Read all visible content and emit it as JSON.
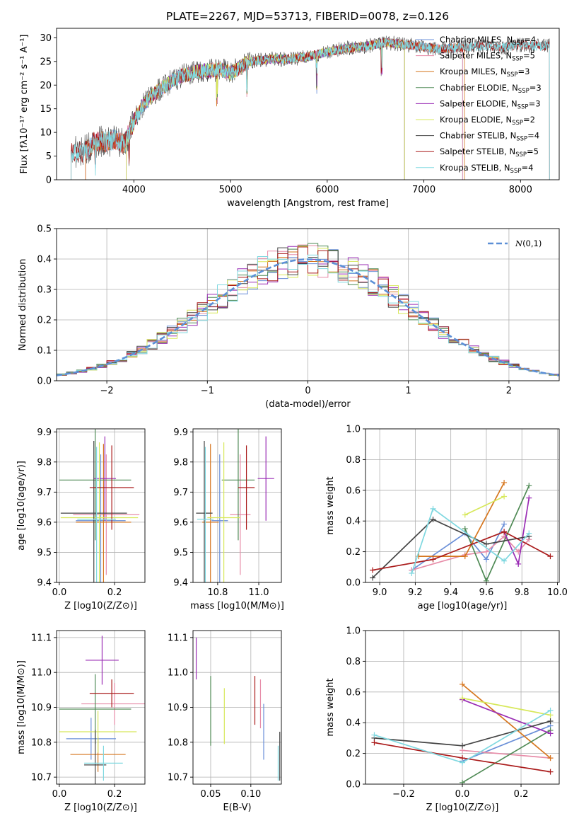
{
  "figure": {
    "title": "PLATE=2267, MJD=53713, FIBERID=0078, z=0.126"
  },
  "chart_data": [
    {
      "id": "spectrum",
      "type": "line",
      "xlabel": "wavelength [Angstrom, rest frame]",
      "ylabel": "Flux [fλ10⁻¹⁷ erg cm⁻² s⁻¹ A⁻¹]",
      "xlim": [
        3200,
        8400
      ],
      "ylim": [
        0,
        32
      ],
      "xticks": [
        4000,
        5000,
        6000,
        7000,
        8000
      ],
      "yticks": [
        0,
        5,
        10,
        15,
        20,
        25,
        30
      ],
      "grid": false,
      "legend_position": "upper right",
      "spectrum_envelope": {
        "x": [
          3350,
          3500,
          3600,
          3700,
          3800,
          3900,
          4000,
          4100,
          4200,
          4300,
          4400,
          4500,
          4700,
          4900,
          5000,
          5200,
          5400,
          5600,
          5800,
          6000,
          6200,
          6400,
          6600,
          6800,
          7000,
          7200,
          7400,
          7600,
          7800,
          8000,
          8200,
          8300
        ],
        "y": [
          5.8,
          6.0,
          8.2,
          8.0,
          8.5,
          7.5,
          12.5,
          16.0,
          18.0,
          19.5,
          21.0,
          22.0,
          23.0,
          23.3,
          22.5,
          25.0,
          25.5,
          25.5,
          26.0,
          27.0,
          27.8,
          28.2,
          29.0,
          28.6,
          28.0,
          27.6,
          28.0,
          28.3,
          27.9,
          28.5,
          28.2,
          28.4
        ]
      },
      "series": [
        {
          "name": "Chabrier MILES, N_SSP=4",
          "color": "#6a8fd8",
          "wmin": 3500,
          "wmax": 7400
        },
        {
          "name": "Salpeter MILES, N_SSP=5",
          "color": "#e78ca8",
          "wmin": 3500,
          "wmax": 7400
        },
        {
          "name": "Kroupa MILES, N_SSP=3",
          "color": "#d6761e",
          "wmin": 3500,
          "wmax": 7420
        },
        {
          "name": "Chabrier ELODIE, N_SSP=3",
          "color": "#4f8a55",
          "wmin": 3920,
          "wmax": 6800
        },
        {
          "name": "Salpeter ELODIE, N_SSP=3",
          "color": "#9a2db5",
          "wmin": 3920,
          "wmax": 6800
        },
        {
          "name": "Kroupa ELODIE, N_SSP=2",
          "color": "#d7e85a",
          "wmin": 3920,
          "wmax": 6800
        },
        {
          "name": "Chabrier STELIB, N_SSP=4",
          "color": "#444444",
          "wmin": 3350,
          "wmax": 8300
        },
        {
          "name": "Salpeter STELIB, N_SSP=5",
          "color": "#aa1b1b",
          "wmin": 3350,
          "wmax": 8300
        },
        {
          "name": "Kroupa STELIB, N_SSP=4",
          "color": "#7fd8e0",
          "wmin": 3350,
          "wmax": 8300
        }
      ]
    },
    {
      "id": "residuals",
      "type": "area",
      "xlabel": "(data-model)/error",
      "ylabel": "Normed distribution",
      "xlim": [
        -2.5,
        2.5
      ],
      "ylim": [
        0,
        0.5
      ],
      "xticks": [
        -2,
        -1,
        0,
        1,
        2
      ],
      "yticks": [
        0.0,
        0.1,
        0.2,
        0.3,
        0.4,
        0.5
      ],
      "grid": true,
      "legend": "N(0,1)",
      "legend_position": "upper right",
      "bin_width": 0.1,
      "histogram_series_colors": [
        "#6a8fd8",
        "#e78ca8",
        "#d6761e",
        "#4f8a55",
        "#9a2db5",
        "#d7e85a",
        "#444444",
        "#aa1b1b",
        "#7fd8e0"
      ],
      "gaussian_color": "#5b8fd6"
    },
    {
      "id": "age_vs_Z",
      "type": "scatter",
      "xlabel": "Z [log10(Z/Z⊙)]",
      "ylabel": "age  [log10(age/yr)]",
      "xlim": [
        -0.01,
        0.31
      ],
      "ylim": [
        9.4,
        9.91
      ],
      "xticks": [
        0.0,
        0.2
      ],
      "yticks": [
        9.4,
        9.5,
        9.6,
        9.7,
        9.8,
        9.9
      ],
      "grid": true,
      "points": [
        {
          "color": "#6a8fd8",
          "x": 0.15,
          "xerr": 0.09,
          "y": 9.605,
          "yerr": 0.22
        },
        {
          "color": "#e78ca8",
          "x": 0.17,
          "xerr": 0.12,
          "y": 9.625,
          "yerr": 0.2
        },
        {
          "color": "#d6761e",
          "x": 0.16,
          "xerr": 0.1,
          "y": 9.6,
          "yerr": 0.26
        },
        {
          "color": "#4f8a55",
          "x": 0.13,
          "xerr": 0.13,
          "y": 9.74,
          "yerr": 0.2
        },
        {
          "color": "#9a2db5",
          "x": 0.165,
          "xerr": 0.04,
          "y": 9.745,
          "yerr": 0.14
        },
        {
          "color": "#d7e85a",
          "x": 0.145,
          "xerr": 0.14,
          "y": 9.615,
          "yerr": 0.25
        },
        {
          "color": "#444444",
          "x": 0.125,
          "xerr": 0.12,
          "y": 9.63,
          "yerr": 0.24
        },
        {
          "color": "#aa1b1b",
          "x": 0.19,
          "xerr": 0.08,
          "y": 9.715,
          "yerr": 0.14
        },
        {
          "color": "#7fd8e0",
          "x": 0.135,
          "xerr": 0.07,
          "y": 9.61,
          "yerr": 0.24
        }
      ]
    },
    {
      "id": "age_vs_mass",
      "type": "scatter",
      "xlabel": "mass [log10(M/M⊙)]",
      "ylabel": "",
      "xlim": [
        10.68,
        11.11
      ],
      "ylim": [
        9.4,
        9.91
      ],
      "xticks": [
        10.8,
        11.0
      ],
      "yticks": [
        9.4,
        9.5,
        9.6,
        9.7,
        9.8,
        9.9
      ],
      "grid": true,
      "points": [
        {
          "color": "#6a8fd8",
          "x": 10.81,
          "xerr": 0.04,
          "y": 9.605,
          "yerr": 0.22
        },
        {
          "color": "#e78ca8",
          "x": 10.91,
          "xerr": 0.05,
          "y": 9.625,
          "yerr": 0.2
        },
        {
          "color": "#d6761e",
          "x": 10.765,
          "xerr": 0.04,
          "y": 9.6,
          "yerr": 0.26
        },
        {
          "color": "#4f8a55",
          "x": 10.9,
          "xerr": 0.08,
          "y": 9.74,
          "yerr": 0.2
        },
        {
          "color": "#9a2db5",
          "x": 11.035,
          "xerr": 0.04,
          "y": 9.745,
          "yerr": 0.14
        },
        {
          "color": "#d7e85a",
          "x": 10.83,
          "xerr": 0.08,
          "y": 9.615,
          "yerr": 0.25
        },
        {
          "color": "#444444",
          "x": 10.735,
          "xerr": 0.04,
          "y": 9.63,
          "yerr": 0.24
        },
        {
          "color": "#aa1b1b",
          "x": 10.94,
          "xerr": 0.04,
          "y": 9.715,
          "yerr": 0.14
        },
        {
          "color": "#7fd8e0",
          "x": 10.74,
          "xerr": 0.04,
          "y": 9.61,
          "yerr": 0.24
        }
      ]
    },
    {
      "id": "mass_weight_vs_age",
      "type": "line",
      "xlabel": "age  [log10(age/yr)]",
      "ylabel": "mass weight",
      "xlim": [
        8.92,
        10.01
      ],
      "ylim": [
        0,
        1
      ],
      "xticks": [
        9.0,
        9.2,
        9.4,
        9.6,
        9.8,
        10.0
      ],
      "yticks": [
        0.0,
        0.2,
        0.4,
        0.6,
        0.8,
        1.0
      ],
      "grid": true,
      "series": [
        {
          "color": "#6a8fd8",
          "x": [
            9.18,
            9.48,
            9.6,
            9.7
          ],
          "y": [
            0.08,
            0.32,
            0.15,
            0.38
          ]
        },
        {
          "color": "#e78ca8",
          "x": [
            9.18,
            9.48,
            9.6,
            9.7,
            9.78,
            9.84
          ],
          "y": [
            0.08,
            0.18,
            0.2,
            0.3,
            0.2,
            0.28
          ]
        },
        {
          "color": "#d6761e",
          "x": [
            9.22,
            9.48,
            9.7
          ],
          "y": [
            0.17,
            0.17,
            0.65
          ]
        },
        {
          "color": "#4f8a55",
          "x": [
            9.48,
            9.6,
            9.84
          ],
          "y": [
            0.35,
            0.01,
            0.63
          ]
        },
        {
          "color": "#9a2db5",
          "x": [
            9.7,
            9.78,
            9.84
          ],
          "y": [
            0.33,
            0.12,
            0.55
          ]
        },
        {
          "color": "#d7e85a",
          "x": [
            9.48,
            9.7
          ],
          "y": [
            0.44,
            0.56
          ]
        },
        {
          "color": "#444444",
          "x": [
            8.96,
            9.3,
            9.6,
            9.84
          ],
          "y": [
            0.03,
            0.41,
            0.25,
            0.3
          ]
        },
        {
          "color": "#aa1b1b",
          "x": [
            8.96,
            9.3,
            9.7,
            9.96
          ],
          "y": [
            0.08,
            0.15,
            0.33,
            0.17
          ]
        },
        {
          "color": "#7fd8e0",
          "x": [
            9.18,
            9.3,
            9.7,
            9.84
          ],
          "y": [
            0.06,
            0.48,
            0.14,
            0.32
          ]
        }
      ]
    },
    {
      "id": "mass_vs_Z",
      "type": "scatter",
      "xlabel": "Z [log10(Z/Z⊙)]",
      "ylabel": "mass [log10(M/M⊙)]",
      "xlim": [
        -0.01,
        0.31
      ],
      "ylim": [
        10.68,
        11.12
      ],
      "xticks": [
        0.0,
        0.2
      ],
      "yticks": [
        10.7,
        10.8,
        10.9,
        11.0,
        11.1
      ],
      "grid": true,
      "points": [
        {
          "color": "#6a8fd8",
          "x": 0.115,
          "xerr": 0.09,
          "y": 10.81,
          "yerr": 0.06
        },
        {
          "color": "#e78ca8",
          "x": 0.2,
          "xerr": 0.12,
          "y": 10.91,
          "yerr": 0.06
        },
        {
          "color": "#d6761e",
          "x": 0.14,
          "xerr": 0.1,
          "y": 10.765,
          "yerr": 0.05
        },
        {
          "color": "#4f8a55",
          "x": 0.13,
          "xerr": 0.13,
          "y": 10.895,
          "yerr": 0.1
        },
        {
          "color": "#9a2db5",
          "x": 0.155,
          "xerr": 0.06,
          "y": 11.035,
          "yerr": 0.07
        },
        {
          "color": "#d7e85a",
          "x": 0.14,
          "xerr": 0.14,
          "y": 10.83,
          "yerr": 0.06
        },
        {
          "color": "#444444",
          "x": 0.13,
          "xerr": 0.04,
          "y": 10.735,
          "yerr": 0.1
        },
        {
          "color": "#aa1b1b",
          "x": 0.19,
          "xerr": 0.08,
          "y": 10.94,
          "yerr": 0.04
        },
        {
          "color": "#7fd8e0",
          "x": 0.16,
          "xerr": 0.07,
          "y": 10.74,
          "yerr": 0.05
        }
      ]
    },
    {
      "id": "mass_vs_ebv",
      "type": "scatter",
      "xlabel": "E(B-V)",
      "ylabel": "",
      "xlim": [
        0.028,
        0.138
      ],
      "ylim": [
        10.68,
        11.12
      ],
      "xticks": [
        0.05,
        0.1
      ],
      "yticks": [
        10.7,
        10.8,
        10.9,
        11.0,
        11.1
      ],
      "grid": true,
      "points": [
        {
          "color": "#6a8fd8",
          "x": 0.116,
          "y": 10.83,
          "yerr": 0.08
        },
        {
          "color": "#e78ca8",
          "x": 0.112,
          "y": 10.91,
          "yerr": 0.07
        },
        {
          "color": "#4f8a55",
          "x": 0.05,
          "y": 10.89,
          "yerr": 0.1
        },
        {
          "color": "#9a2db5",
          "x": 0.032,
          "y": 11.04,
          "yerr": 0.06
        },
        {
          "color": "#d7e85a",
          "x": 0.067,
          "y": 10.875,
          "yerr": 0.08
        },
        {
          "color": "#444444",
          "x": 0.136,
          "y": 10.76,
          "yerr": 0.07
        },
        {
          "color": "#aa1b1b",
          "x": 0.105,
          "y": 10.92,
          "yerr": 0.07
        },
        {
          "color": "#7fd8e0",
          "x": 0.134,
          "y": 10.74,
          "yerr": 0.05
        }
      ]
    },
    {
      "id": "mass_weight_vs_Z",
      "type": "line",
      "xlabel": "Z [log10(Z/Z⊙)]",
      "ylabel": "mass weight",
      "xlim": [
        -0.33,
        0.33
      ],
      "ylim": [
        0,
        1
      ],
      "xticks": [
        -0.2,
        0.0,
        0.2
      ],
      "yticks": [
        0.0,
        0.2,
        0.4,
        0.6,
        0.8,
        1.0
      ],
      "grid": true,
      "series": [
        {
          "color": "#6a8fd8",
          "x": [
            0.0,
            0.3
          ],
          "y": [
            0.15,
            0.38
          ]
        },
        {
          "color": "#e78ca8",
          "x": [
            0.0,
            0.3
          ],
          "y": [
            0.22,
            0.17
          ]
        },
        {
          "color": "#d6761e",
          "x": [
            0.0,
            0.3
          ],
          "y": [
            0.65,
            0.17
          ]
        },
        {
          "color": "#4f8a55",
          "x": [
            0.0,
            0.3
          ],
          "y": [
            0.01,
            0.35
          ]
        },
        {
          "color": "#9a2db5",
          "x": [
            0.0,
            0.3
          ],
          "y": [
            0.55,
            0.33
          ]
        },
        {
          "color": "#d7e85a",
          "x": [
            0.0,
            0.3
          ],
          "y": [
            0.56,
            0.45
          ]
        },
        {
          "color": "#444444",
          "x": [
            -0.3,
            0.0,
            0.3
          ],
          "y": [
            0.3,
            0.25,
            0.41
          ]
        },
        {
          "color": "#aa1b1b",
          "x": [
            -0.3,
            0.0,
            0.3
          ],
          "y": [
            0.27,
            0.17,
            0.08
          ]
        },
        {
          "color": "#7fd8e0",
          "x": [
            -0.3,
            0.0,
            0.3
          ],
          "y": [
            0.32,
            0.14,
            0.48
          ]
        }
      ]
    }
  ]
}
